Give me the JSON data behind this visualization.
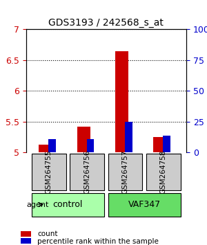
{
  "title": "GDS3193 / 242568_s_at",
  "samples": [
    "GSM264755",
    "GSM264756",
    "GSM264757",
    "GSM264758"
  ],
  "groups": [
    "control",
    "control",
    "VAF347",
    "VAF347"
  ],
  "group_labels": [
    "control",
    "VAF347"
  ],
  "group_colors": [
    "#aaffaa",
    "#55ee55"
  ],
  "sample_bg_color": "#cccccc",
  "red_values": [
    5.13,
    5.42,
    6.65,
    5.25
  ],
  "blue_values": [
    5.22,
    5.22,
    5.5,
    5.28
  ],
  "ylim_left": [
    5.0,
    7.0
  ],
  "ylim_right": [
    0,
    100
  ],
  "yticks_left": [
    5.0,
    5.5,
    6.0,
    6.5,
    7.0
  ],
  "yticks_right": [
    0,
    25,
    50,
    75,
    100
  ],
  "ytick_labels_left": [
    "5",
    "5.5",
    "6",
    "6.5",
    "7"
  ],
  "ytick_labels_right": [
    "0",
    "25",
    "50",
    "75",
    "100%"
  ],
  "left_tick_color": "#cc0000",
  "right_tick_color": "#0000cc",
  "bar_width": 0.35,
  "agent_label": "agent",
  "legend_red": "count",
  "legend_blue": "percentile rank within the sample",
  "grid_style": "dotted",
  "grid_color": "#000000"
}
